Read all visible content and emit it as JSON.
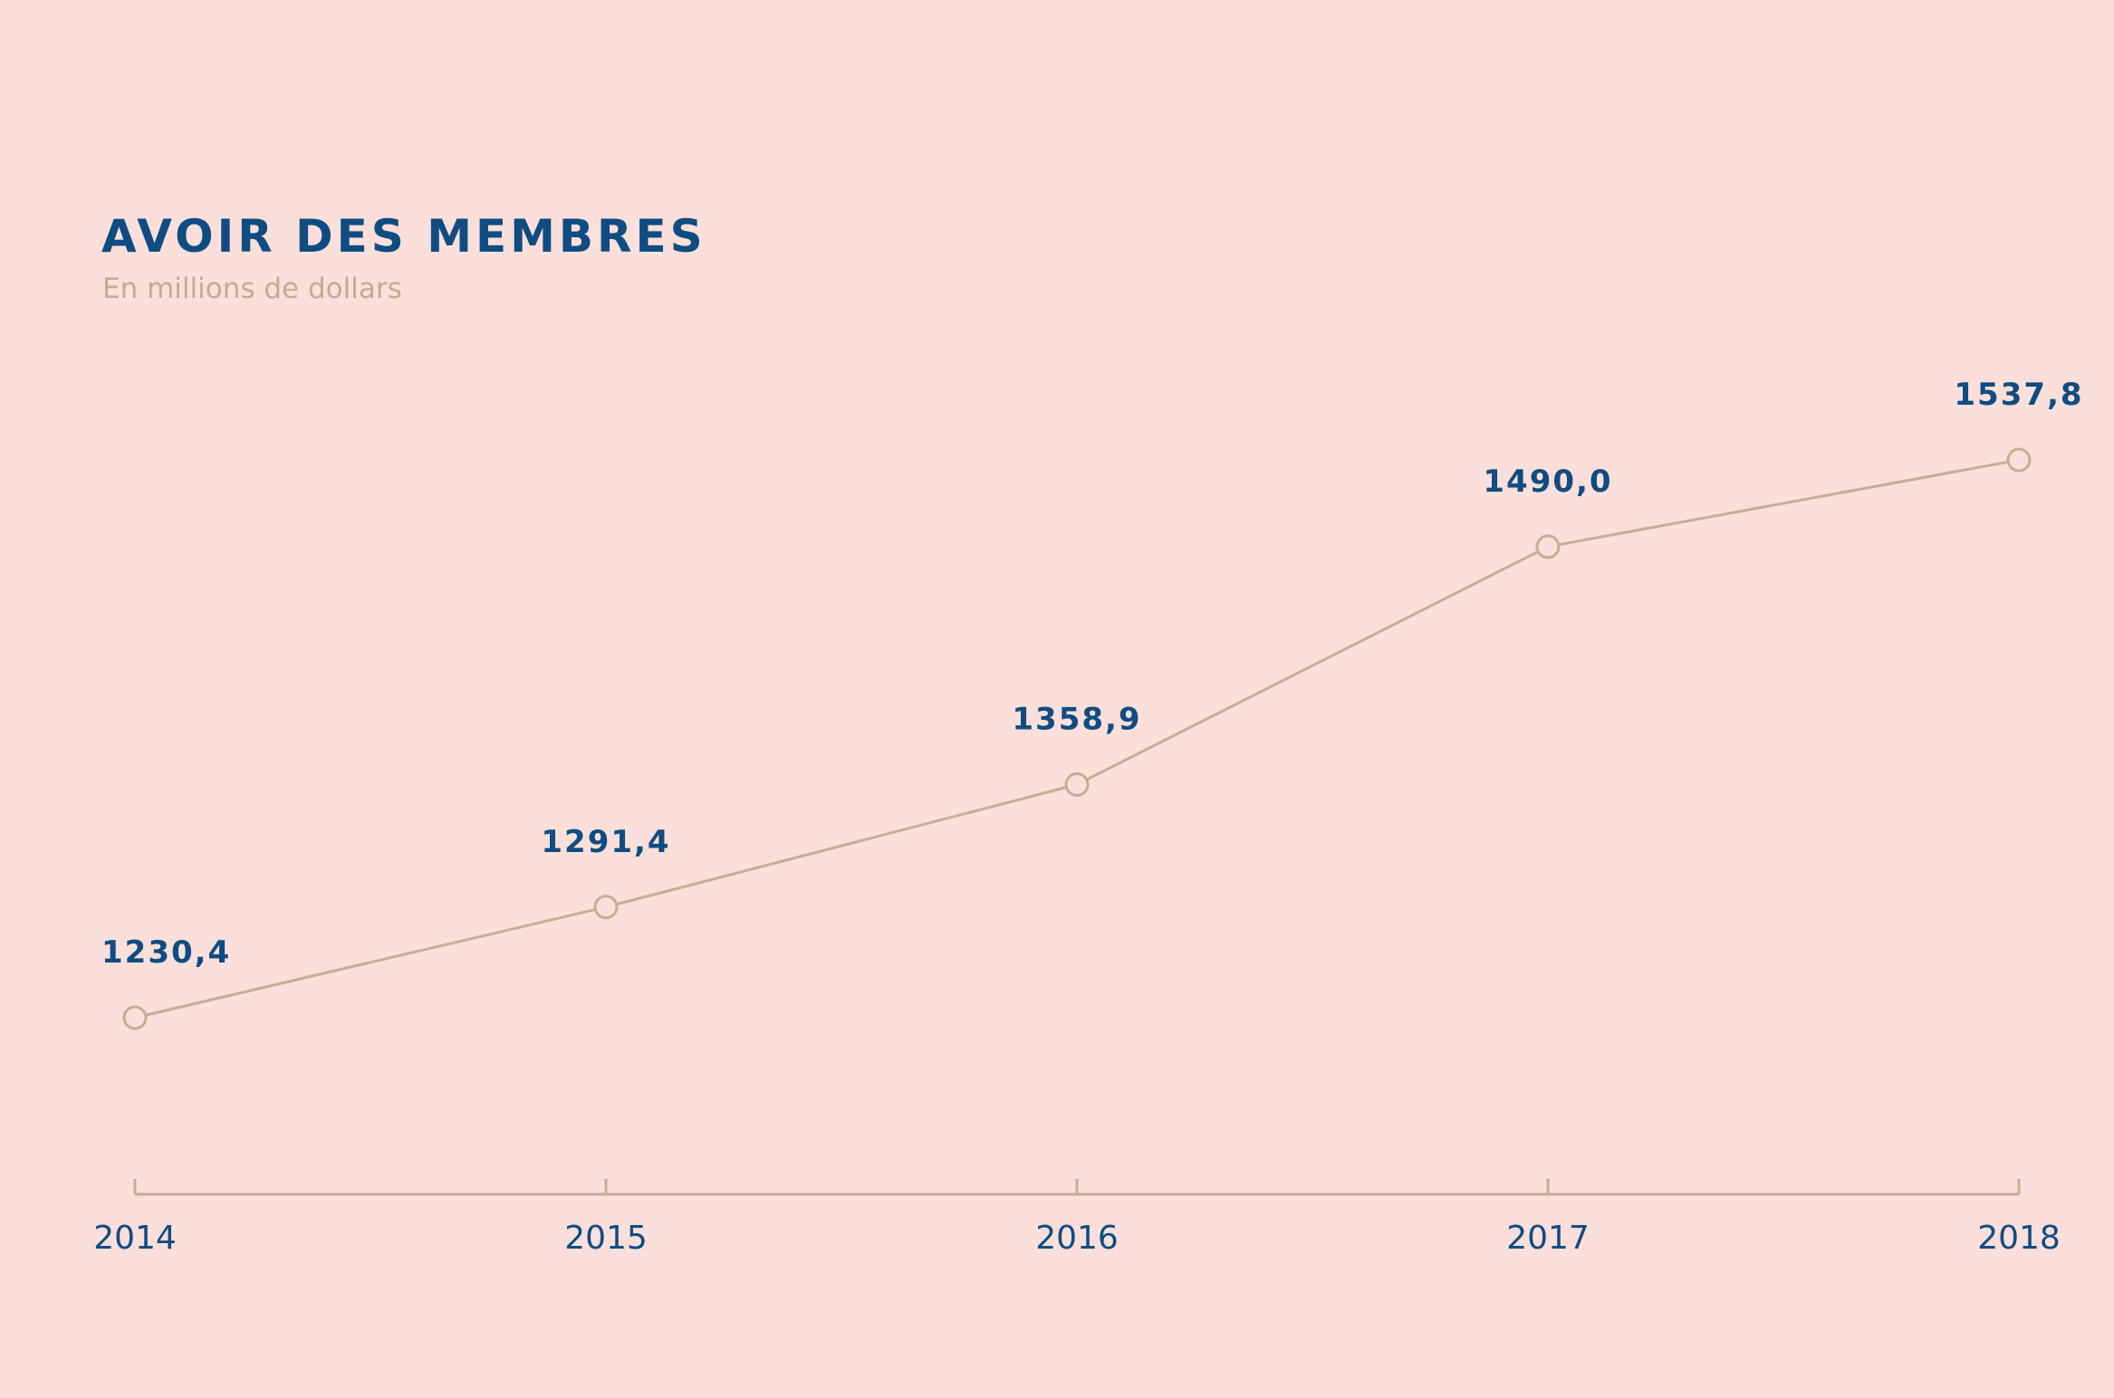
{
  "header": {
    "title": "AVOIR DES MEMBRES",
    "subtitle": "En millions de dollars"
  },
  "colors": {
    "background": "#FADFDA",
    "title": "#0F4C81",
    "subtitle": "#C4AC92",
    "line": "#C8AD95",
    "label": "#0F4C81"
  },
  "chart_data": {
    "type": "line",
    "title": "AVOIR DES MEMBRES",
    "subtitle": "En millions de dollars",
    "xlabel": "",
    "ylabel": "",
    "categories": [
      "2014",
      "2015",
      "2016",
      "2017",
      "2018"
    ],
    "values": [
      1230.4,
      1291.4,
      1358.9,
      1490.0,
      1537.8
    ],
    "value_labels": [
      "1230,4",
      "1291,4",
      "1358,9",
      "1490,0",
      "1537,8"
    ],
    "grid": false,
    "legend": "none",
    "markers": "hollow-circle"
  }
}
